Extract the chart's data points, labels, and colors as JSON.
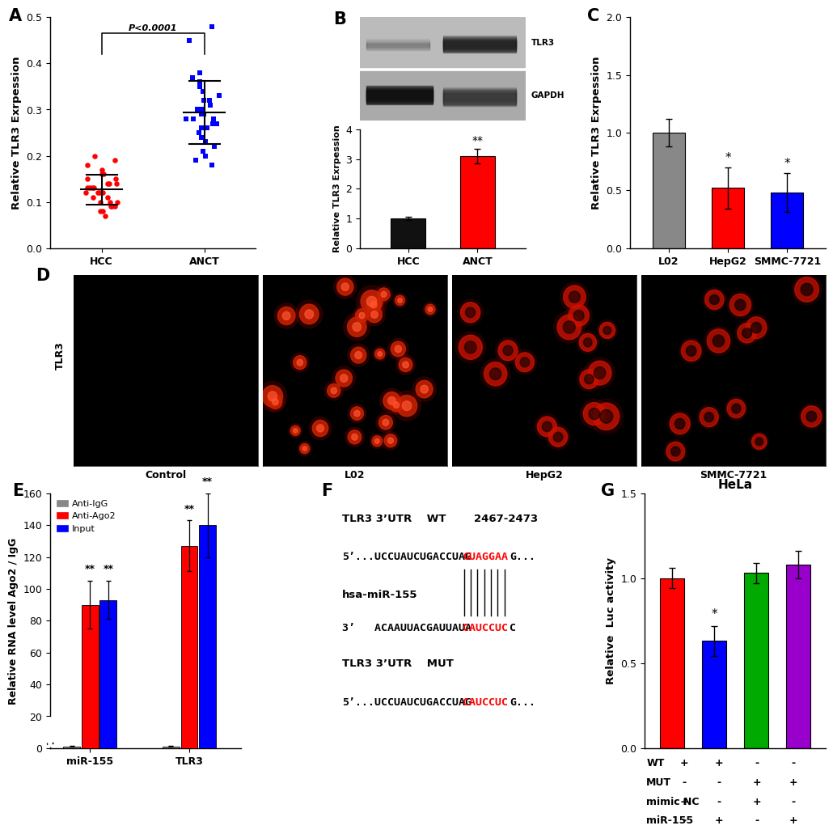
{
  "panel_A": {
    "label": "A",
    "hcc_points": [
      0.13,
      0.09,
      0.12,
      0.14,
      0.1,
      0.08,
      0.17,
      0.15,
      0.13,
      0.16,
      0.11,
      0.09,
      0.12,
      0.18,
      0.2,
      0.19,
      0.13,
      0.1,
      0.15,
      0.12,
      0.07,
      0.14,
      0.11,
      0.16,
      0.09,
      0.13,
      0.12,
      0.1,
      0.14,
      0.08
    ],
    "anct_points": [
      0.28,
      0.32,
      0.35,
      0.29,
      0.38,
      0.27,
      0.22,
      0.3,
      0.26,
      0.19,
      0.21,
      0.25,
      0.31,
      0.36,
      0.34,
      0.27,
      0.29,
      0.33,
      0.37,
      0.28,
      0.24,
      0.3,
      0.32,
      0.2,
      0.26,
      0.28,
      0.45,
      0.18,
      0.23,
      0.48
    ],
    "hcc_color": "#FF0000",
    "anct_color": "#0000FF",
    "ylabel": "Relative TLR3 Exrpession",
    "ylim": [
      0,
      0.5
    ],
    "yticks": [
      0.0,
      0.1,
      0.2,
      0.3,
      0.4,
      0.5
    ],
    "pvalue": "P<0.0001",
    "xlabel_hcc": "HCC",
    "xlabel_anct": "ANCT"
  },
  "panel_B": {
    "label": "B",
    "categories": [
      "HCC",
      "ANCT"
    ],
    "values": [
      1.0,
      3.1
    ],
    "errors": [
      0.05,
      0.25
    ],
    "colors": [
      "#111111",
      "#FF0000"
    ],
    "ylabel": "Relative TLR3 Exrpession",
    "ylim": [
      0,
      4
    ],
    "yticks": [
      0,
      1,
      2,
      3,
      4
    ],
    "significance": [
      "",
      "**"
    ]
  },
  "panel_C": {
    "label": "C",
    "categories": [
      "L02",
      "HepG2",
      "SMMC-7721"
    ],
    "values": [
      1.0,
      0.52,
      0.48
    ],
    "errors": [
      0.12,
      0.18,
      0.17
    ],
    "colors": [
      "#888888",
      "#FF0000",
      "#0000FF"
    ],
    "ylabel": "Relative TLR3 Exrpession",
    "ylim": [
      0.0,
      2.0
    ],
    "yticks": [
      0.0,
      0.5,
      1.0,
      1.5,
      2.0
    ],
    "significance": [
      "",
      "*",
      "*"
    ]
  },
  "panel_D": {
    "label": "D",
    "row_label": "TLR3",
    "col_labels": [
      "Control",
      "L02",
      "HepG2",
      "SMMC-7721"
    ]
  },
  "panel_E": {
    "label": "E",
    "groups": [
      "miR-155",
      "TLR3"
    ],
    "subgroups": [
      "Anti-IgG",
      "Anti-Ago2",
      "Input"
    ],
    "colors": [
      "#888888",
      "#FF0000",
      "#0000FF"
    ],
    "values_miR155": [
      1.0,
      90.0,
      93.0
    ],
    "values_TLR3": [
      1.0,
      127.0,
      140.0
    ],
    "errors_miR155": [
      0.2,
      15.0,
      12.0
    ],
    "errors_TLR3": [
      0.2,
      16.0,
      20.0
    ],
    "ylabel": "Relative RNA level Ago2 / IgG",
    "ylim": [
      0,
      160
    ],
    "yticks": [
      0,
      20,
      40,
      60,
      80,
      100,
      120,
      140,
      160
    ],
    "sig_miR155": [
      "",
      "**",
      "**"
    ],
    "sig_TLR3": [
      "",
      "**",
      "**"
    ]
  },
  "panel_F": {
    "label": "F"
  },
  "panel_G": {
    "label": "G",
    "title": "HeLa",
    "values": [
      1.0,
      0.63,
      1.03,
      1.08
    ],
    "errors": [
      0.06,
      0.09,
      0.06,
      0.08
    ],
    "colors": [
      "#FF0000",
      "#0000FF",
      "#00AA00",
      "#9900CC"
    ],
    "ylabel": "Relative  Luc activity",
    "ylim": [
      0,
      1.5
    ],
    "yticks": [
      0.0,
      0.5,
      1.0,
      1.5
    ],
    "significance": [
      "",
      "*",
      "",
      ""
    ],
    "WT_row": [
      "+",
      "+",
      "-",
      "-"
    ],
    "MUT_row": [
      "-",
      "-",
      "+",
      "+"
    ],
    "mimicNC_row": [
      "+",
      "-",
      "+",
      "-"
    ],
    "miR155_row": [
      "-",
      "+",
      "-",
      "+"
    ]
  },
  "figure_bg": "#FFFFFF"
}
